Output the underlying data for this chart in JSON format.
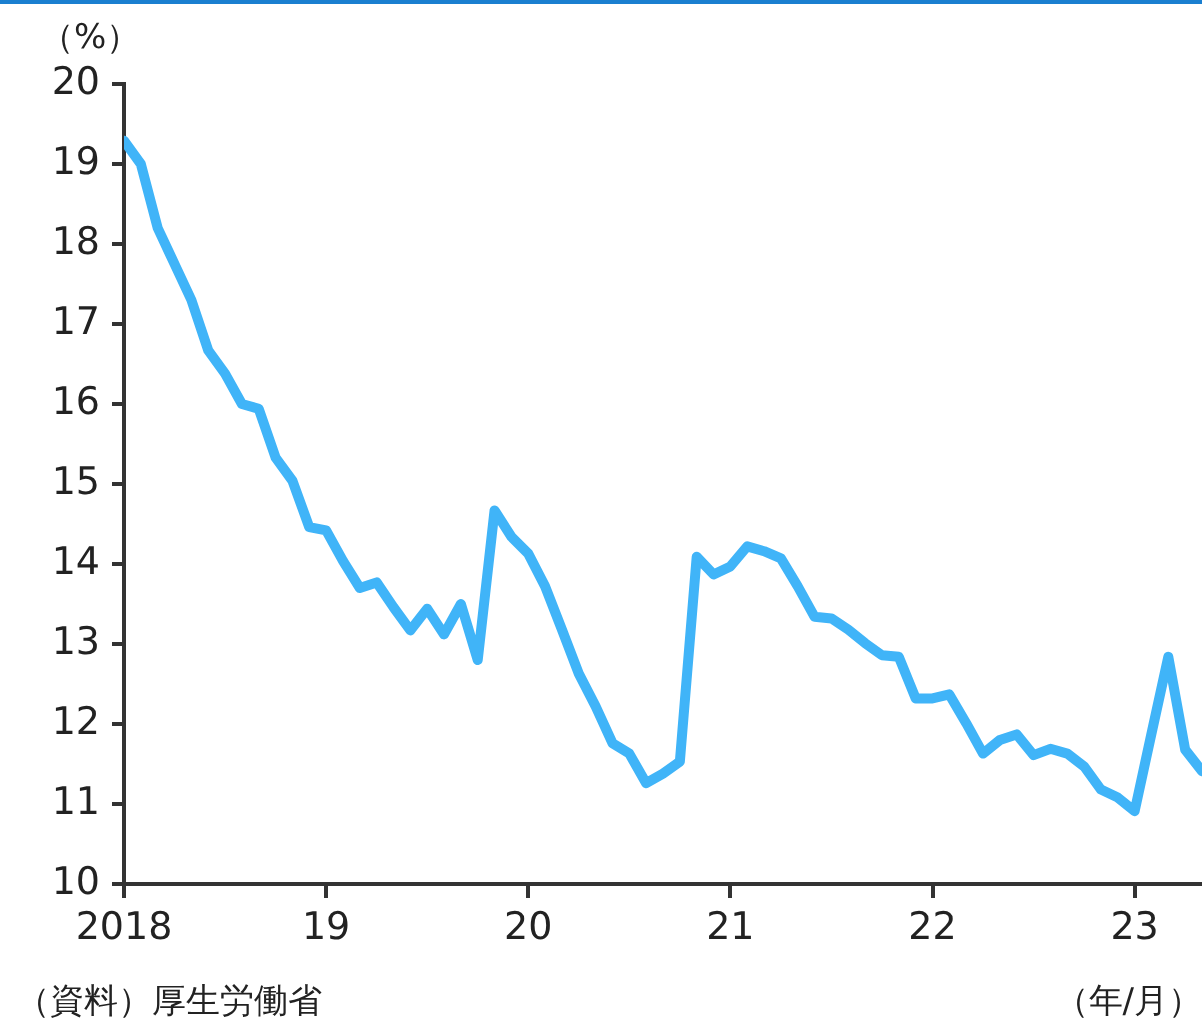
{
  "chart_data": {
    "type": "line",
    "ylabel": "（%）",
    "xlabel": "（年/月）",
    "annotations": [
      "（資料）厚生労働省"
    ],
    "x": [
      "2018-01",
      "2018-02",
      "2018-03",
      "2018-04",
      "2018-05",
      "2018-06",
      "2018-07",
      "2018-08",
      "2018-09",
      "2018-10",
      "2018-11",
      "2018-12",
      "2019-01",
      "2019-02",
      "2019-03",
      "2019-04",
      "2019-05",
      "2019-06",
      "2019-07",
      "2019-08",
      "2019-09",
      "2019-10",
      "2019-11",
      "2019-12",
      "2020-01",
      "2020-02",
      "2020-03",
      "2020-04",
      "2020-05",
      "2020-06",
      "2020-07",
      "2020-08",
      "2020-09",
      "2020-10",
      "2020-11",
      "2020-12",
      "2021-01",
      "2021-02",
      "2021-03",
      "2021-04",
      "2021-05",
      "2021-06",
      "2021-07",
      "2021-08",
      "2021-09",
      "2021-10",
      "2021-11",
      "2021-12",
      "2022-01",
      "2022-02",
      "2022-03",
      "2022-04",
      "2022-05",
      "2022-06",
      "2022-07",
      "2022-08",
      "2022-09",
      "2022-10",
      "2022-11",
      "2022-12",
      "2023-01",
      "2023-02",
      "2023-03",
      "2023-04",
      "2023-05"
    ],
    "series": [
      {
        "color": "#40b4f8",
        "values": [
          19.29,
          19.0,
          18.2,
          17.75,
          17.3,
          16.67,
          16.38,
          16.0,
          15.94,
          15.33,
          15.04,
          14.46,
          14.42,
          14.04,
          13.7,
          13.77,
          13.46,
          13.17,
          13.44,
          13.12,
          13.5,
          12.8,
          14.67,
          14.34,
          14.13,
          13.72,
          13.18,
          12.63,
          12.22,
          11.76,
          11.63,
          11.26,
          11.38,
          11.53,
          14.09,
          13.87,
          13.97,
          14.22,
          14.16,
          14.07,
          13.72,
          13.34,
          13.32,
          13.18,
          13.01,
          12.86,
          12.84,
          12.32,
          12.32,
          12.37,
          12.01,
          11.63,
          11.8,
          11.87,
          11.61,
          11.69,
          11.63,
          11.47,
          11.18,
          11.08,
          10.91,
          11.88,
          12.84,
          11.68,
          11.41
        ]
      }
    ],
    "xlim": [
      "2018-01",
      "2023-05"
    ],
    "xticks": [
      {
        "value": "2018-01",
        "label": "2018"
      },
      {
        "value": "2019-01",
        "label": "19"
      },
      {
        "value": "2020-01",
        "label": "20"
      },
      {
        "value": "2021-01",
        "label": "21"
      },
      {
        "value": "2022-01",
        "label": "22"
      },
      {
        "value": "2023-01",
        "label": "23"
      }
    ],
    "ylim": [
      10,
      20
    ],
    "yticks": [
      10,
      11,
      12,
      13,
      14,
      15,
      16,
      17,
      18,
      19,
      20
    ],
    "grid": false,
    "legend": false,
    "marker": "none",
    "line_style": "solid"
  }
}
